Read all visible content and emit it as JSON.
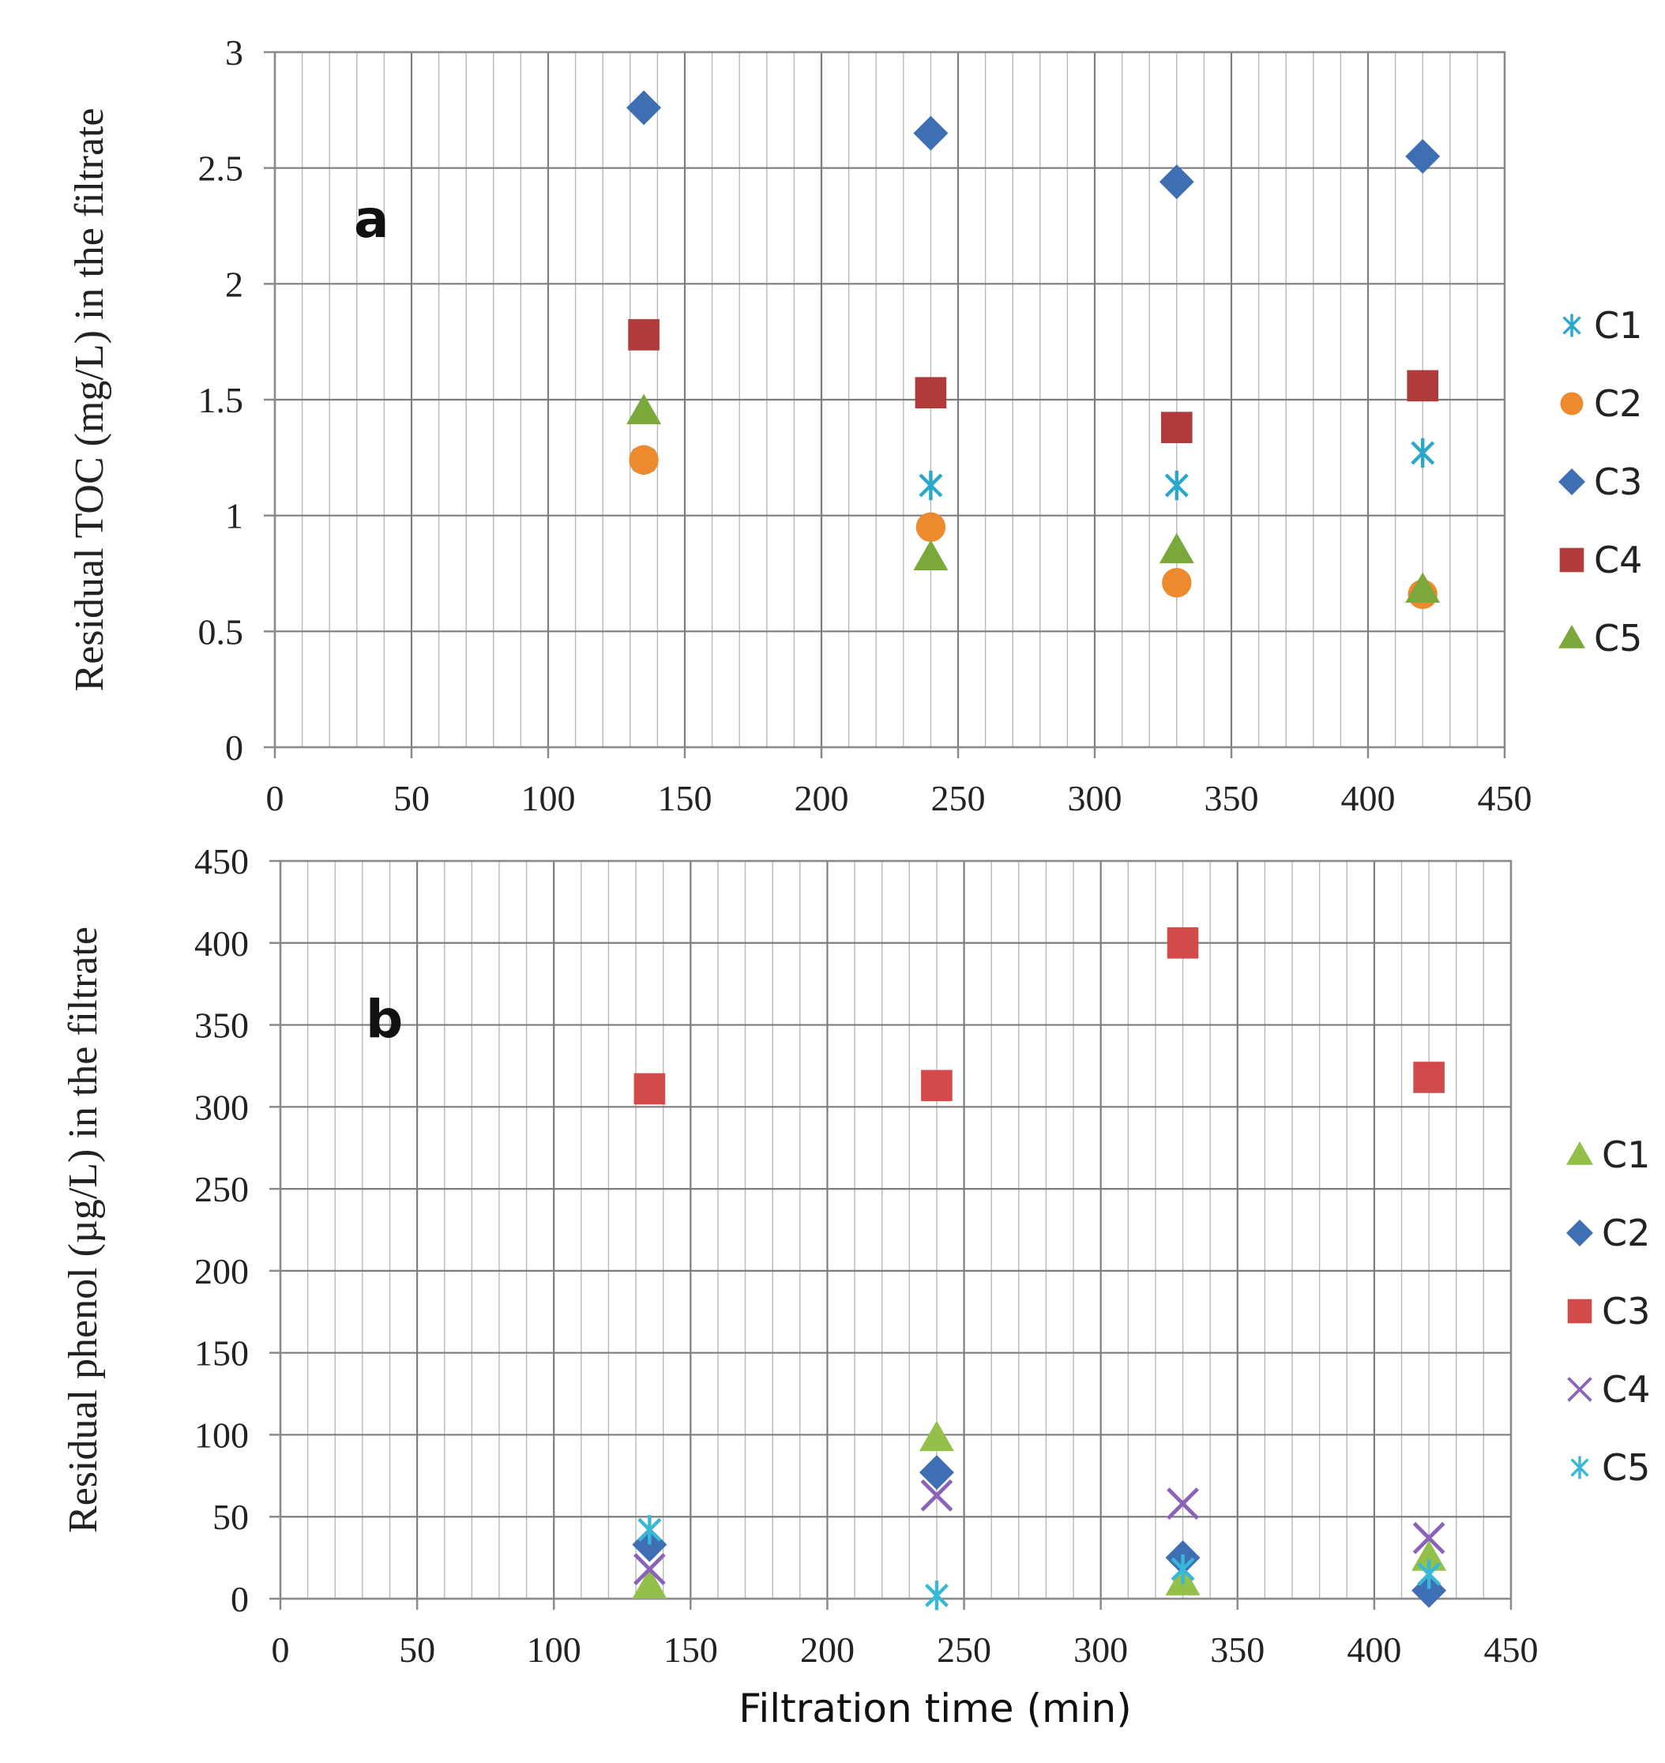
{
  "chart_data": [
    {
      "type": "scatter",
      "panel_label": "a",
      "xlabel": "",
      "ylabel": "Residual TOC (mg/L) in the filtrate",
      "xlim": [
        0,
        450
      ],
      "ylim": [
        0,
        3
      ],
      "xticks": [
        "0",
        "50",
        "100",
        "150",
        "200",
        "250",
        "300",
        "350",
        "400",
        "450"
      ],
      "yticks": [
        "0",
        "0.5",
        "1",
        "1.5",
        "2",
        "2.5",
        "3"
      ],
      "grid": true,
      "legend_position": "right",
      "series": [
        {
          "name": "C1",
          "marker": "asterisk",
          "color": "#2aa7c9",
          "x": [
            135,
            240,
            330,
            420
          ],
          "y": [
            1.24,
            1.13,
            1.13,
            1.27
          ]
        },
        {
          "name": "C2",
          "marker": "circle",
          "color": "#ee8a2e",
          "x": [
            135,
            240,
            330,
            420
          ],
          "y": [
            1.24,
            0.95,
            0.71,
            0.66
          ]
        },
        {
          "name": "C3",
          "marker": "diamond",
          "color": "#3f6fb3",
          "x": [
            135,
            240,
            330,
            420
          ],
          "y": [
            2.76,
            2.65,
            2.44,
            2.55
          ]
        },
        {
          "name": "C4",
          "marker": "square",
          "color": "#b13b3b",
          "x": [
            135,
            240,
            330,
            420
          ],
          "y": [
            1.78,
            1.53,
            1.38,
            1.56
          ]
        },
        {
          "name": "C5",
          "marker": "triangle",
          "color": "#7aa83a",
          "x": [
            135,
            240,
            330,
            420
          ],
          "y": [
            1.45,
            0.82,
            0.85,
            0.68
          ]
        }
      ]
    },
    {
      "type": "scatter",
      "panel_label": "b",
      "xlabel": "Filtration time (min)",
      "ylabel": "Residual phenol (µg/L) in the filtrate",
      "xlim": [
        0,
        450
      ],
      "ylim": [
        0,
        450
      ],
      "xticks": [
        "0",
        "50",
        "100",
        "150",
        "200",
        "250",
        "300",
        "350",
        "400",
        "450"
      ],
      "yticks": [
        "0",
        "50",
        "100",
        "150",
        "200",
        "250",
        "300",
        "350",
        "400",
        "450"
      ],
      "grid": true,
      "legend_position": "right",
      "series": [
        {
          "name": "C1",
          "marker": "triangle",
          "color": "#92c04a",
          "x": [
            135,
            240,
            330,
            420
          ],
          "y": [
            8,
            98,
            10,
            25
          ]
        },
        {
          "name": "C2",
          "marker": "diamond",
          "color": "#3f6fb3",
          "x": [
            135,
            240,
            330,
            420
          ],
          "y": [
            33,
            77,
            25,
            5
          ]
        },
        {
          "name": "C3",
          "marker": "square",
          "color": "#d34a4a",
          "x": [
            135,
            240,
            330,
            420
          ],
          "y": [
            311,
            313,
            400,
            318
          ]
        },
        {
          "name": "C4",
          "marker": "cross",
          "color": "#8a63b8",
          "x": [
            135,
            240,
            330,
            420
          ],
          "y": [
            18,
            63,
            58,
            37
          ]
        },
        {
          "name": "C5",
          "marker": "asterisk",
          "color": "#38b7d6",
          "x": [
            135,
            240,
            330,
            420
          ],
          "y": [
            42,
            2,
            18,
            15
          ]
        }
      ]
    }
  ]
}
